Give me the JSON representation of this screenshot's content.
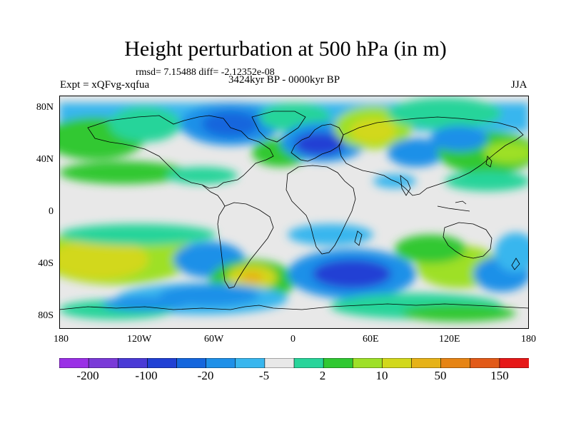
{
  "title": "Height perturbation at 500 hPa (in m)",
  "stats": "rmsd= 7.15488 diff= -2.12352e-08",
  "left_label": "Expt = xQFvg-xqfua",
  "center_label": "3424kyr BP - 0000kyr BP",
  "right_label": "JJA",
  "lat_ticks": [
    "80N",
    "40N",
    "0",
    "40S",
    "80S"
  ],
  "lon_ticks": [
    "180",
    "120W",
    "60W",
    "0",
    "60E",
    "120E",
    "180"
  ],
  "colorbar": {
    "colors": [
      "#9a30e6",
      "#7a3ad8",
      "#4a3ad6",
      "#2040d4",
      "#1466dd",
      "#1e90e8",
      "#38b6ee",
      "#e8e8e8",
      "#28d49a",
      "#30c832",
      "#9ee028",
      "#d2d81c",
      "#e6b218",
      "#e68414",
      "#e25a18",
      "#e61818"
    ],
    "labels": [
      "-200",
      "-100",
      "-20",
      "-5",
      "2",
      "10",
      "50",
      "150"
    ]
  },
  "field_colors": {
    "neutral": "#e8e8e8",
    "light_blue": "#38b6ee",
    "mid_blue": "#1e90e8",
    "blue": "#1466dd",
    "deep_blue": "#2040d4",
    "teal": "#28d49a",
    "green": "#30c832",
    "yellow_green": "#9ee028",
    "yellow": "#d2d81c",
    "orange_yellow": "#e6b218"
  }
}
